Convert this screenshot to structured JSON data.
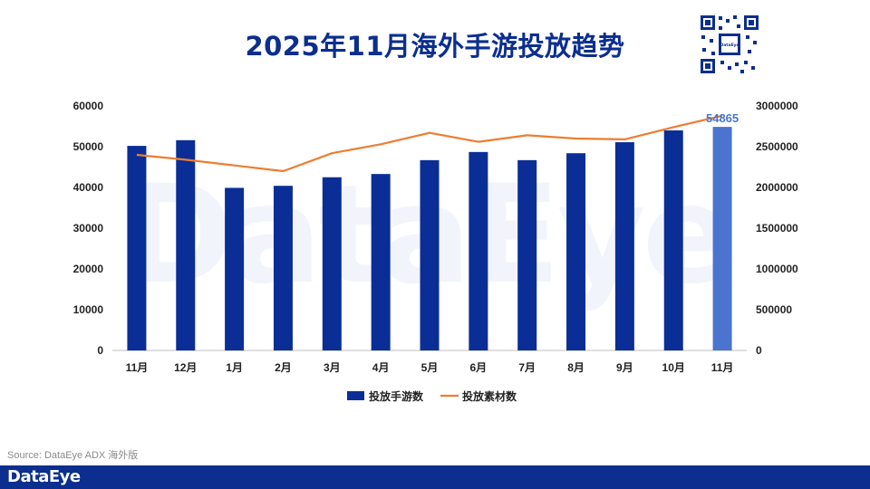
{
  "title": "2025年11月海外手游投放趋势",
  "watermark": "DataEye",
  "source": "Source: DataEye ADX 海外版",
  "footer": {
    "logo": "DataEye"
  },
  "qr_logo": "DataEye",
  "colors": {
    "title": "#0b2e8f",
    "bar": "#0a2e96",
    "bar_highlight": "#4a74cf",
    "line": "#ed7d31",
    "footer": "#0b2e8f",
    "axis_text": "#222222"
  },
  "chart_data": {
    "type": "bar",
    "categories": [
      "11月",
      "12月",
      "1月",
      "2月",
      "3月",
      "4月",
      "5月",
      "6月",
      "7月",
      "8月",
      "9月",
      "10月",
      "11月"
    ],
    "series": [
      {
        "name": "投放手游数",
        "type": "bar",
        "axis": "left",
        "values": [
          50200,
          51600,
          39900,
          40400,
          42500,
          43300,
          46700,
          48700,
          46700,
          48400,
          51100,
          54000,
          54865
        ]
      },
      {
        "name": "投放素材数",
        "type": "line",
        "axis": "right",
        "values": [
          2400000,
          2340000,
          2270000,
          2200000,
          2420000,
          2530000,
          2670000,
          2560000,
          2640000,
          2600000,
          2590000,
          2740000,
          2880000
        ]
      }
    ],
    "y_left": {
      "min": 0,
      "max": 60000,
      "ticks": [
        "0",
        "10000",
        "20000",
        "30000",
        "40000",
        "50000",
        "60000"
      ]
    },
    "y_right": {
      "min": 0,
      "max": 3000000,
      "ticks": [
        "0",
        "500000",
        "1000000",
        "1500000",
        "2000000",
        "2500000",
        "3000000"
      ]
    },
    "annotation": {
      "index": 12,
      "text": "54865"
    },
    "highlight_index": 12,
    "legend_position": "bottom",
    "grid": false
  }
}
